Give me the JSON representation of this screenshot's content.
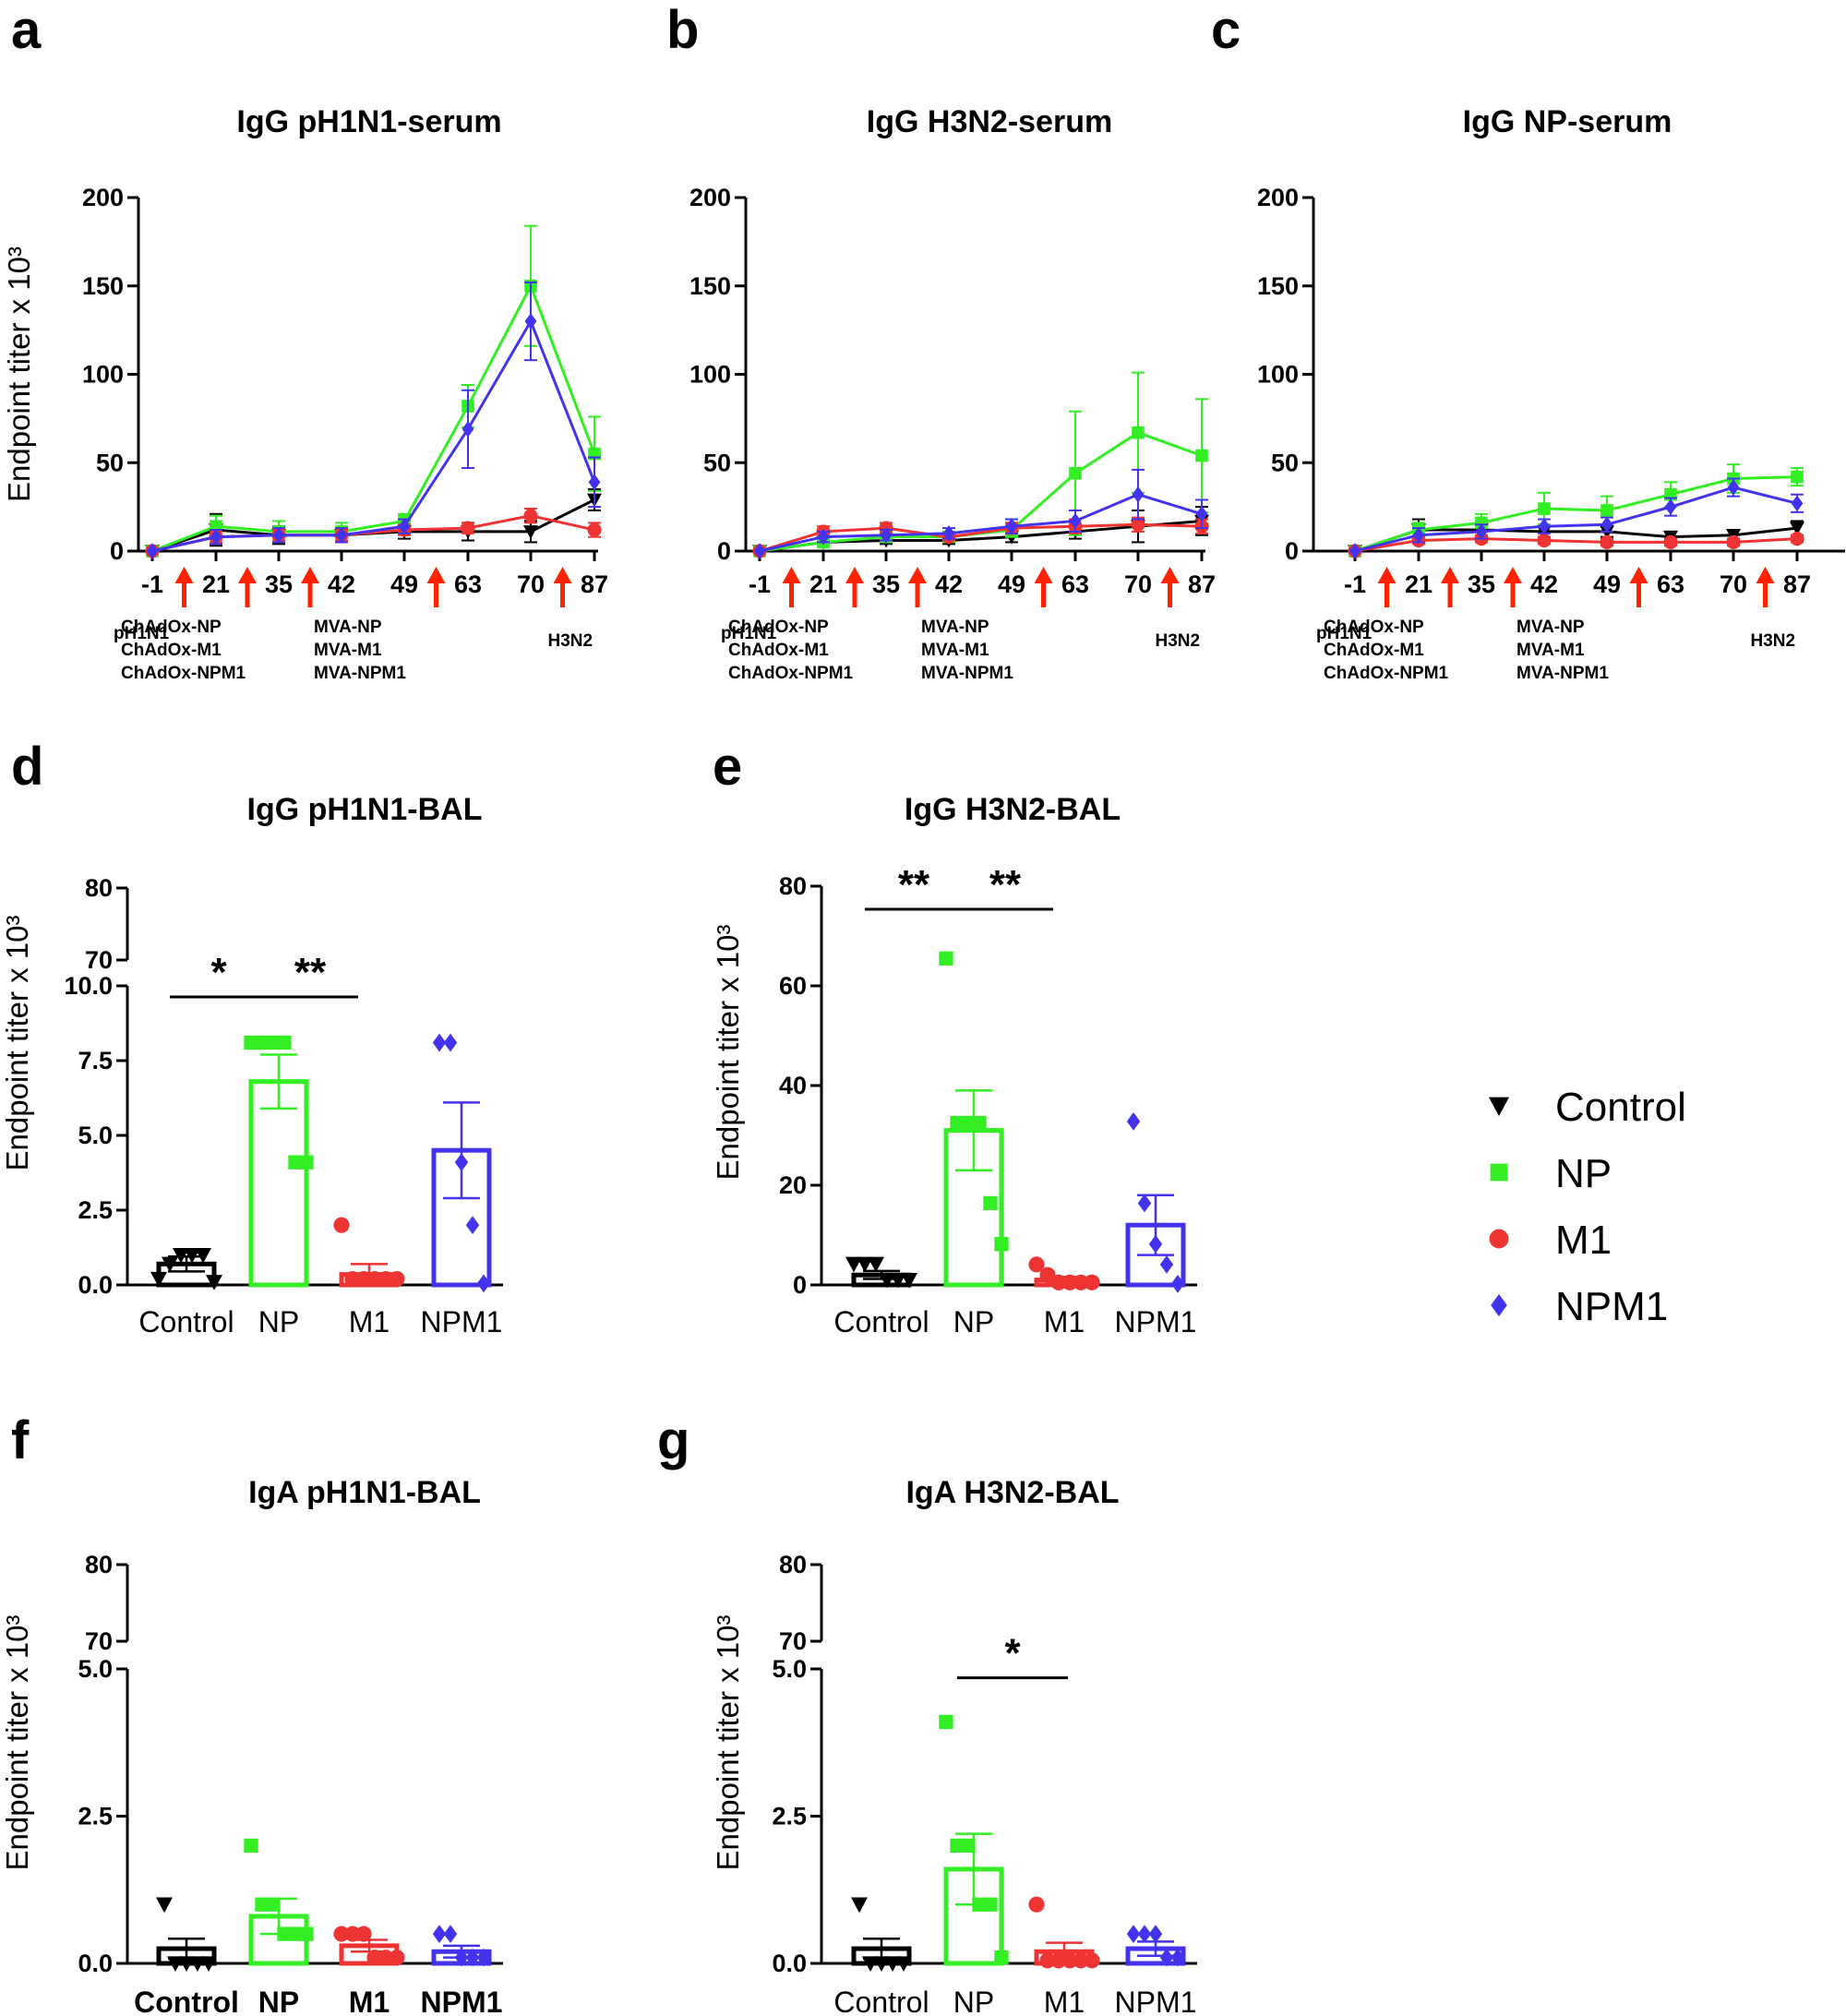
{
  "colors": {
    "Control": "#000000",
    "NP": "#33ee22",
    "M1": "#ee3333",
    "NPM1": "#4433ee",
    "arrow": "#ff2200"
  },
  "legend": [
    {
      "group": "Control",
      "marker": "triangle-down"
    },
    {
      "group": "NP",
      "marker": "square"
    },
    {
      "group": "M1",
      "marker": "circle"
    },
    {
      "group": "NPM1",
      "marker": "diamond"
    }
  ],
  "chart_data": [
    {
      "id": "a",
      "letter": "a",
      "type": "line",
      "title": "IgG pH1N1-serum",
      "ylabel": "Endpoint titer x 10³",
      "ylim": [
        0,
        200
      ],
      "yticks": [
        "0",
        "50",
        "100",
        "150",
        "200"
      ],
      "x": [
        "-1",
        "21",
        "35",
        "42",
        "49",
        "63",
        "70",
        "87"
      ],
      "immunizations": [
        {
          "after_index": 0,
          "label": [
            "pH1N1"
          ]
        },
        {
          "after_index": 1,
          "label": [
            "ChAdOx-NP",
            "ChAdOx-M1",
            "ChAdOx-NPM1"
          ]
        },
        {
          "after_index": 2,
          "label": []
        },
        {
          "after_index": 4,
          "label": [
            "MVA-NP",
            "MVA-M1",
            "MVA-NPM1"
          ]
        },
        {
          "after_index": 6,
          "label": [
            "H3N2"
          ]
        }
      ],
      "series": [
        {
          "name": "Control",
          "values": [
            0,
            12,
            9,
            9,
            11,
            11,
            11,
            29
          ],
          "errors": [
            0,
            9,
            5,
            4,
            4,
            5,
            6,
            6
          ]
        },
        {
          "name": "NP",
          "values": [
            0,
            14,
            11,
            11,
            17,
            82,
            150,
            55
          ],
          "errors": [
            0,
            6,
            6,
            5,
            4,
            12,
            34,
            21
          ]
        },
        {
          "name": "M1",
          "values": [
            0,
            8,
            9,
            9,
            12,
            13,
            20,
            12
          ],
          "errors": [
            0,
            3,
            3,
            3,
            3,
            3,
            4,
            4
          ]
        },
        {
          "name": "NPM1",
          "values": [
            0,
            8,
            9,
            9,
            14,
            69,
            130,
            39
          ],
          "errors": [
            0,
            4,
            4,
            4,
            4,
            22,
            22,
            14
          ]
        }
      ]
    },
    {
      "id": "b",
      "letter": "b",
      "type": "line",
      "title": "IgG H3N2-serum",
      "ylabel": "",
      "ylim": [
        0,
        200
      ],
      "yticks": [
        "0",
        "50",
        "100",
        "150",
        "200"
      ],
      "x": [
        "-1",
        "21",
        "35",
        "42",
        "49",
        "63",
        "70",
        "87"
      ],
      "immunizations": [
        {
          "after_index": 0,
          "label": [
            "pH1N1"
          ]
        },
        {
          "after_index": 1,
          "label": [
            "ChAdOx-NP",
            "ChAdOx-M1",
            "ChAdOx-NPM1"
          ]
        },
        {
          "after_index": 2,
          "label": []
        },
        {
          "after_index": 4,
          "label": [
            "MVA-NP",
            "MVA-M1",
            "MVA-NPM1"
          ]
        },
        {
          "after_index": 6,
          "label": [
            "H3N2"
          ]
        }
      ],
      "series": [
        {
          "name": "Control",
          "values": [
            0,
            5,
            6,
            6,
            8,
            11,
            14,
            17
          ],
          "errors": [
            0,
            2,
            2,
            2,
            3,
            4,
            9,
            8
          ]
        },
        {
          "name": "NP",
          "values": [
            0,
            5,
            8,
            8,
            12,
            44,
            67,
            54
          ],
          "errors": [
            0,
            2,
            3,
            3,
            4,
            35,
            34,
            32
          ]
        },
        {
          "name": "M1",
          "values": [
            0,
            11,
            13,
            8,
            13,
            14,
            15,
            14
          ],
          "errors": [
            0,
            3,
            3,
            2,
            3,
            4,
            4,
            4
          ]
        },
        {
          "name": "NPM1",
          "values": [
            0,
            8,
            9,
            10,
            14,
            17,
            32,
            21
          ],
          "errors": [
            0,
            3,
            3,
            3,
            4,
            6,
            14,
            8
          ]
        }
      ]
    },
    {
      "id": "c",
      "letter": "c",
      "type": "line",
      "title": "IgG NP-serum",
      "ylabel": "",
      "ylim": [
        0,
        200
      ],
      "yticks": [
        "0",
        "50",
        "100",
        "150",
        "200"
      ],
      "x": [
        "-1",
        "21",
        "35",
        "42",
        "49",
        "63",
        "70",
        "87"
      ],
      "immunizations": [
        {
          "after_index": 0,
          "label": [
            "pH1N1"
          ]
        },
        {
          "after_index": 1,
          "label": [
            "ChAdOx-NP",
            "ChAdOx-M1",
            "ChAdOx-NPM1"
          ]
        },
        {
          "after_index": 2,
          "label": []
        },
        {
          "after_index": 4,
          "label": [
            "MVA-NP",
            "MVA-M1",
            "MVA-NPM1"
          ]
        },
        {
          "after_index": 6,
          "label": [
            "H3N2"
          ]
        }
      ],
      "series": [
        {
          "name": "Control",
          "values": [
            0,
            12,
            12,
            11,
            11,
            8,
            9,
            13
          ],
          "errors": [
            0,
            6,
            4,
            4,
            3,
            3,
            3,
            4
          ]
        },
        {
          "name": "NP",
          "values": [
            0,
            12,
            16,
            24,
            23,
            32,
            41,
            42
          ],
          "errors": [
            0,
            4,
            5,
            9,
            8,
            7,
            8,
            5
          ]
        },
        {
          "name": "M1",
          "values": [
            0,
            6,
            7,
            6,
            5,
            5,
            5,
            7
          ],
          "errors": [
            0,
            2,
            2,
            2,
            2,
            2,
            2,
            2
          ]
        },
        {
          "name": "NPM1",
          "values": [
            0,
            9,
            11,
            14,
            15,
            25,
            36,
            27
          ],
          "errors": [
            0,
            4,
            4,
            4,
            4,
            5,
            5,
            5
          ]
        }
      ]
    },
    {
      "id": "d",
      "letter": "d",
      "type": "bar",
      "title": "IgG pH1N1-BAL",
      "ylabel": "Endpoint titer x 10³",
      "broken_axis": {
        "lower": [
          0,
          10
        ],
        "upper": [
          70,
          80
        ]
      },
      "yticks_lower": [
        "0.0",
        "2.5",
        "5.0",
        "7.5",
        "10.0"
      ],
      "yticks_upper": [
        "70",
        "80"
      ],
      "categories": [
        "Control",
        "NP",
        "M1",
        "NPM1"
      ],
      "bold_categories": false,
      "series": [
        {
          "name": "Control",
          "mean": 0.7,
          "sem": 0.25,
          "points": [
            0.2,
            0.7,
            1.0,
            1.0,
            1.0,
            0.1
          ]
        },
        {
          "name": "NP",
          "mean": 6.8,
          "sem": 0.9,
          "points": [
            8.1,
            8.1,
            8.1,
            8.1,
            4.1,
            4.1
          ]
        },
        {
          "name": "M1",
          "mean": 0.35,
          "sem": 0.35,
          "points": [
            2.0,
            0.2,
            0.2,
            0.2,
            0.2,
            0.2
          ]
        },
        {
          "name": "NPM1",
          "mean": 4.5,
          "sem": 1.6,
          "points": [
            8.1,
            8.1,
            4.1,
            2.0,
            0.05
          ]
        }
      ],
      "significance": [
        {
          "from": 0,
          "to": 1,
          "label": "*",
          "y": 10.0
        },
        {
          "from": 1,
          "to": 2,
          "label": "**",
          "y": 10.0
        }
      ]
    },
    {
      "id": "e",
      "letter": "e",
      "type": "bar",
      "title": "IgG H3N2-BAL",
      "ylabel": "Endpoint titer x 10³",
      "ylim": [
        0,
        80
      ],
      "yticks": [
        "0",
        "20",
        "40",
        "60",
        "80"
      ],
      "categories": [
        "Control",
        "NP",
        "M1",
        "NPM1"
      ],
      "bold_categories": false,
      "series": [
        {
          "name": "Control",
          "mean": 2.0,
          "sem": 0.8,
          "points": [
            4.2,
            4.2,
            4.2,
            1.0,
            1.0,
            1.0
          ]
        },
        {
          "name": "NP",
          "mean": 31.0,
          "sem": 8.0,
          "points": [
            65.5,
            32.5,
            32.5,
            32.5,
            16.4,
            8.2
          ]
        },
        {
          "name": "M1",
          "mean": 1.0,
          "sem": 0.6,
          "points": [
            4.1,
            2.0,
            0.5,
            0.5,
            0.5,
            0.5
          ]
        },
        {
          "name": "NPM1",
          "mean": 12.0,
          "sem": 6.0,
          "points": [
            32.8,
            16.4,
            8.2,
            4.1,
            0.2
          ]
        }
      ],
      "significance": [
        {
          "from": 0,
          "to": 1,
          "label": "**",
          "y": 75
        },
        {
          "from": 1,
          "to": 2,
          "label": "**",
          "y": 75
        }
      ]
    },
    {
      "id": "f",
      "letter": "f",
      "type": "bar",
      "title": "IgA pH1N1-BAL",
      "ylabel": "Endpoint titer x 10³",
      "broken_axis": {
        "lower": [
          0,
          5
        ],
        "upper": [
          70,
          80
        ]
      },
      "yticks_lower": [
        "0.0",
        "2.5",
        "5.0"
      ],
      "yticks_upper": [
        "70",
        "80"
      ],
      "categories": [
        "Control",
        "NP",
        "M1",
        "NPM1"
      ],
      "bold_categories": true,
      "series": [
        {
          "name": "Control",
          "mean": 0.25,
          "sem": 0.17,
          "points": [
            1.0,
            0.0,
            0.0,
            0.0,
            0.0
          ]
        },
        {
          "name": "NP",
          "mean": 0.8,
          "sem": 0.3,
          "points": [
            2.0,
            1.0,
            1.0,
            0.5,
            0.5,
            0.5
          ]
        },
        {
          "name": "M1",
          "mean": 0.3,
          "sem": 0.1,
          "points": [
            0.5,
            0.5,
            0.5,
            0.1,
            0.1,
            0.1
          ]
        },
        {
          "name": "NPM1",
          "mean": 0.2,
          "sem": 0.1,
          "points": [
            0.5,
            0.5,
            0.1,
            0.1,
            0.1
          ]
        }
      ],
      "significance": []
    },
    {
      "id": "g",
      "letter": "g",
      "type": "bar",
      "title": "IgA H3N2-BAL",
      "ylabel": "Endpoint titer x 10³",
      "broken_axis": {
        "lower": [
          0,
          5
        ],
        "upper": [
          70,
          80
        ]
      },
      "yticks_lower": [
        "0.0",
        "2.5",
        "5.0"
      ],
      "yticks_upper": [
        "70",
        "80"
      ],
      "categories": [
        "Control",
        "NP",
        "M1",
        "NPM1"
      ],
      "bold_categories": false,
      "series": [
        {
          "name": "Control",
          "mean": 0.25,
          "sem": 0.17,
          "points": [
            1.0,
            0.0,
            0.0,
            0.0,
            0.0
          ]
        },
        {
          "name": "NP",
          "mean": 1.6,
          "sem": 0.6,
          "points": [
            4.1,
            2.0,
            2.0,
            1.0,
            1.0,
            0.1
          ]
        },
        {
          "name": "M1",
          "mean": 0.2,
          "sem": 0.15,
          "points": [
            1.0,
            0.05,
            0.05,
            0.05,
            0.05,
            0.05
          ]
        },
        {
          "name": "NPM1",
          "mean": 0.25,
          "sem": 0.12,
          "points": [
            0.5,
            0.5,
            0.5,
            0.1,
            0.1
          ]
        }
      ],
      "significance": [
        {
          "from": 1,
          "to": 2,
          "label": "*",
          "y": 4.85
        }
      ]
    }
  ]
}
